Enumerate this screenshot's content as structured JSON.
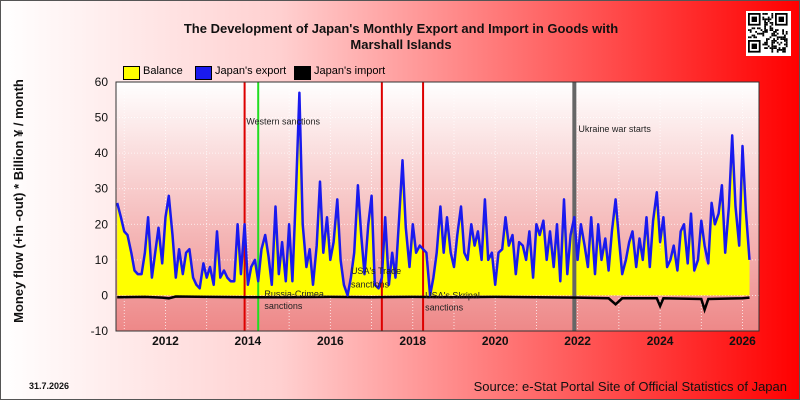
{
  "title_line1": "The Development of Japan's Monthly Export and Import in Goods with",
  "title_line2": "Marshall Islands",
  "ylabel": "Money flow (+in -out) * Billion ¥ / month",
  "legend": {
    "balance": "Balance",
    "export": "Japan's export",
    "import": "Japan's import"
  },
  "colors": {
    "balance": "#ffff00",
    "export": "#1a1aee",
    "import": "#000000",
    "red_line": "#dd0000",
    "green_line": "#22dd22",
    "gray_line": "#666666"
  },
  "date_stamp": "31.7.2026",
  "source": "Source: e-Stat Portal Site of Official Statistics of Japan",
  "chart_data": {
    "type": "line",
    "x_range": [
      2010.8,
      2026.4
    ],
    "ylim": [
      -10,
      60
    ],
    "yticks": [
      -10,
      0,
      10,
      20,
      30,
      40,
      50,
      60
    ],
    "xticks": [
      2012,
      2014,
      2016,
      2018,
      2020,
      2022,
      2024,
      2026
    ],
    "grid": true,
    "legend_position": "top-left",
    "export_series": [
      [
        2010.83,
        26
      ],
      [
        2010.92,
        22
      ],
      [
        2011.0,
        18
      ],
      [
        2011.08,
        17
      ],
      [
        2011.17,
        12
      ],
      [
        2011.25,
        7
      ],
      [
        2011.33,
        6
      ],
      [
        2011.42,
        6
      ],
      [
        2011.5,
        12
      ],
      [
        2011.58,
        22
      ],
      [
        2011.67,
        5
      ],
      [
        2011.75,
        12
      ],
      [
        2011.83,
        19
      ],
      [
        2011.92,
        9
      ],
      [
        2012.0,
        22
      ],
      [
        2012.08,
        28
      ],
      [
        2012.17,
        17
      ],
      [
        2012.25,
        5
      ],
      [
        2012.33,
        13
      ],
      [
        2012.42,
        6
      ],
      [
        2012.5,
        12
      ],
      [
        2012.58,
        13
      ],
      [
        2012.67,
        5
      ],
      [
        2012.75,
        3
      ],
      [
        2012.83,
        2
      ],
      [
        2012.92,
        9
      ],
      [
        2013.0,
        5
      ],
      [
        2013.08,
        8
      ],
      [
        2013.17,
        3
      ],
      [
        2013.25,
        18
      ],
      [
        2013.33,
        5
      ],
      [
        2013.42,
        7
      ],
      [
        2013.5,
        5
      ],
      [
        2013.58,
        4
      ],
      [
        2013.67,
        4
      ],
      [
        2013.75,
        20
      ],
      [
        2013.83,
        6
      ],
      [
        2013.92,
        20
      ],
      [
        2014.0,
        3
      ],
      [
        2014.08,
        8
      ],
      [
        2014.17,
        10
      ],
      [
        2014.25,
        4
      ],
      [
        2014.33,
        13
      ],
      [
        2014.42,
        17
      ],
      [
        2014.5,
        11
      ],
      [
        2014.58,
        3
      ],
      [
        2014.67,
        25
      ],
      [
        2014.75,
        6
      ],
      [
        2014.83,
        15
      ],
      [
        2014.92,
        4
      ],
      [
        2015.0,
        20
      ],
      [
        2015.08,
        4
      ],
      [
        2015.17,
        30
      ],
      [
        2015.25,
        57
      ],
      [
        2015.33,
        20
      ],
      [
        2015.42,
        8
      ],
      [
        2015.5,
        13
      ],
      [
        2015.58,
        3
      ],
      [
        2015.67,
        14
      ],
      [
        2015.75,
        32
      ],
      [
        2015.83,
        12
      ],
      [
        2015.92,
        22
      ],
      [
        2016.0,
        10
      ],
      [
        2016.08,
        15
      ],
      [
        2016.17,
        27
      ],
      [
        2016.25,
        10
      ],
      [
        2016.33,
        3
      ],
      [
        2016.42,
        0
      ],
      [
        2016.5,
        5
      ],
      [
        2016.58,
        12
      ],
      [
        2016.67,
        31
      ],
      [
        2016.75,
        17
      ],
      [
        2016.83,
        6
      ],
      [
        2016.92,
        20
      ],
      [
        2017.0,
        28
      ],
      [
        2017.08,
        3
      ],
      [
        2017.17,
        2
      ],
      [
        2017.25,
        5
      ],
      [
        2017.33,
        22
      ],
      [
        2017.42,
        3
      ],
      [
        2017.5,
        12
      ],
      [
        2017.58,
        5
      ],
      [
        2017.67,
        22
      ],
      [
        2017.75,
        38
      ],
      [
        2017.83,
        19
      ],
      [
        2017.92,
        8
      ],
      [
        2018.0,
        20
      ],
      [
        2018.08,
        12
      ],
      [
        2018.17,
        14
      ],
      [
        2018.25,
        13
      ],
      [
        2018.33,
        12
      ],
      [
        2018.42,
        0
      ],
      [
        2018.5,
        5
      ],
      [
        2018.58,
        12
      ],
      [
        2018.67,
        25
      ],
      [
        2018.75,
        12
      ],
      [
        2018.83,
        22
      ],
      [
        2018.92,
        12
      ],
      [
        2019.0,
        8
      ],
      [
        2019.08,
        17
      ],
      [
        2019.17,
        25
      ],
      [
        2019.25,
        12
      ],
      [
        2019.33,
        10
      ],
      [
        2019.42,
        20
      ],
      [
        2019.5,
        14
      ],
      [
        2019.58,
        18
      ],
      [
        2019.67,
        10
      ],
      [
        2019.75,
        27
      ],
      [
        2019.83,
        10
      ],
      [
        2019.92,
        12
      ],
      [
        2020.0,
        3
      ],
      [
        2020.08,
        12
      ],
      [
        2020.17,
        13
      ],
      [
        2020.25,
        22
      ],
      [
        2020.33,
        14
      ],
      [
        2020.42,
        17
      ],
      [
        2020.5,
        6
      ],
      [
        2020.58,
        15
      ],
      [
        2020.67,
        14
      ],
      [
        2020.75,
        10
      ],
      [
        2020.83,
        18
      ],
      [
        2020.92,
        5
      ],
      [
        2021.0,
        20
      ],
      [
        2021.08,
        17
      ],
      [
        2021.17,
        21
      ],
      [
        2021.25,
        10
      ],
      [
        2021.33,
        18
      ],
      [
        2021.42,
        8
      ],
      [
        2021.5,
        20
      ],
      [
        2021.58,
        4
      ],
      [
        2021.67,
        27
      ],
      [
        2021.75,
        6
      ],
      [
        2021.83,
        17
      ],
      [
        2021.92,
        22
      ],
      [
        2022.0,
        10
      ],
      [
        2022.08,
        20
      ],
      [
        2022.17,
        14
      ],
      [
        2022.25,
        8
      ],
      [
        2022.33,
        22
      ],
      [
        2022.42,
        6
      ],
      [
        2022.5,
        20
      ],
      [
        2022.58,
        10
      ],
      [
        2022.67,
        16
      ],
      [
        2022.75,
        7
      ],
      [
        2022.83,
        18
      ],
      [
        2022.92,
        27
      ],
      [
        2023.0,
        16
      ],
      [
        2023.08,
        6
      ],
      [
        2023.17,
        10
      ],
      [
        2023.25,
        15
      ],
      [
        2023.33,
        18
      ],
      [
        2023.42,
        8
      ],
      [
        2023.5,
        16
      ],
      [
        2023.58,
        10
      ],
      [
        2023.67,
        22
      ],
      [
        2023.75,
        8
      ],
      [
        2023.83,
        21
      ],
      [
        2023.92,
        29
      ],
      [
        2024.0,
        15
      ],
      [
        2024.08,
        22
      ],
      [
        2024.17,
        8
      ],
      [
        2024.25,
        10
      ],
      [
        2024.33,
        14
      ],
      [
        2024.42,
        7
      ],
      [
        2024.5,
        18
      ],
      [
        2024.58,
        20
      ],
      [
        2024.67,
        9
      ],
      [
        2024.75,
        23
      ],
      [
        2024.83,
        7
      ],
      [
        2024.92,
        10
      ],
      [
        2025.0,
        21
      ],
      [
        2025.08,
        14
      ],
      [
        2025.17,
        9
      ],
      [
        2025.25,
        26
      ],
      [
        2025.33,
        20
      ],
      [
        2025.42,
        23
      ],
      [
        2025.5,
        31
      ],
      [
        2025.58,
        12
      ],
      [
        2025.67,
        25
      ],
      [
        2025.75,
        45
      ],
      [
        2025.83,
        25
      ],
      [
        2025.92,
        14
      ],
      [
        2026.0,
        42
      ],
      [
        2026.08,
        24
      ],
      [
        2026.17,
        10
      ]
    ],
    "import_series": [
      [
        2010.83,
        -0.5
      ],
      [
        2011.5,
        -0.4
      ],
      [
        2011.92,
        -0.6
      ],
      [
        2012.08,
        -0.8
      ],
      [
        2012.25,
        -0.3
      ],
      [
        2013.0,
        -0.4
      ],
      [
        2014.0,
        -0.5
      ],
      [
        2015.0,
        -0.5
      ],
      [
        2016.0,
        -0.4
      ],
      [
        2017.0,
        -0.5
      ],
      [
        2018.0,
        -0.4
      ],
      [
        2019.0,
        -0.5
      ],
      [
        2020.0,
        -0.4
      ],
      [
        2021.0,
        -0.5
      ],
      [
        2022.0,
        -0.6
      ],
      [
        2022.75,
        -0.8
      ],
      [
        2022.92,
        -2.5
      ],
      [
        2023.08,
        -0.8
      ],
      [
        2023.92,
        -0.8
      ],
      [
        2024.0,
        -3.0
      ],
      [
        2024.08,
        -0.8
      ],
      [
        2025.0,
        -1.0
      ],
      [
        2025.08,
        -4.0
      ],
      [
        2025.17,
        -1.0
      ],
      [
        2026.0,
        -0.8
      ],
      [
        2026.17,
        -0.6
      ]
    ],
    "events": [
      {
        "x": 2013.92,
        "color": "red"
      },
      {
        "x": 2014.25,
        "color": "green",
        "label": "Western sanctions",
        "label_y": 48
      },
      {
        "x": 2017.25,
        "color": "red"
      },
      {
        "x": 2018.25,
        "color": "red"
      },
      {
        "x": 2021.92,
        "color": "gray",
        "label": "Ukraine war starts",
        "label_y": 46
      }
    ],
    "annotations": [
      {
        "text": "Russia-Crimea",
        "x": 2014.4,
        "y": -0.5
      },
      {
        "text": "sanctions",
        "x": 2014.4,
        "y": -3.8
      },
      {
        "text": "USA's Trade",
        "x": 2016.5,
        "y": 6.0
      },
      {
        "text": "sanctions",
        "x": 2016.5,
        "y": 2.2
      },
      {
        "text": "USA's Skripal",
        "x": 2018.3,
        "y": -0.8
      },
      {
        "text": "sanctions",
        "x": 2018.3,
        "y": -4.3
      }
    ]
  }
}
